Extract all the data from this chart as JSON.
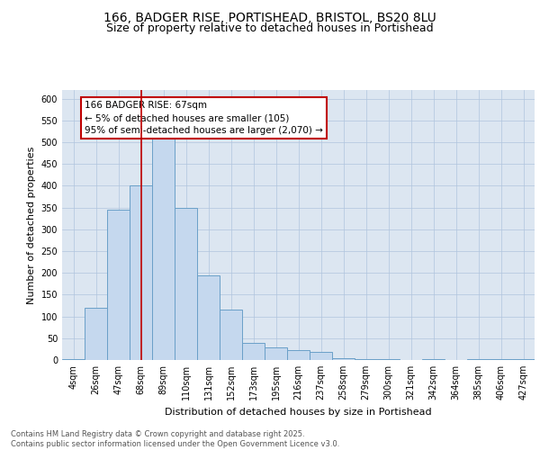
{
  "title_line1": "166, BADGER RISE, PORTISHEAD, BRISTOL, BS20 8LU",
  "title_line2": "Size of property relative to detached houses in Portishead",
  "xlabel": "Distribution of detached houses by size in Portishead",
  "ylabel": "Number of detached properties",
  "categories": [
    "4sqm",
    "26sqm",
    "47sqm",
    "68sqm",
    "89sqm",
    "110sqm",
    "131sqm",
    "152sqm",
    "173sqm",
    "195sqm",
    "216sqm",
    "237sqm",
    "258sqm",
    "279sqm",
    "300sqm",
    "321sqm",
    "342sqm",
    "364sqm",
    "385sqm",
    "406sqm",
    "427sqm"
  ],
  "values": [
    2,
    120,
    345,
    400,
    510,
    350,
    195,
    115,
    40,
    28,
    22,
    18,
    5,
    3,
    3,
    1,
    2,
    1,
    2,
    2,
    2
  ],
  "bar_color": "#c5d8ee",
  "bar_edge_color": "#6aa0c8",
  "vline_color": "#c00000",
  "vline_x": 3.0,
  "annotation_text": "166 BADGER RISE: 67sqm\n← 5% of detached houses are smaller (105)\n95% of semi-detached houses are larger (2,070) →",
  "annotation_box_color": "#ffffff",
  "annotation_box_edge_color": "#c00000",
  "ylim": [
    0,
    620
  ],
  "yticks": [
    0,
    50,
    100,
    150,
    200,
    250,
    300,
    350,
    400,
    450,
    500,
    550,
    600
  ],
  "background_color": "#dce6f1",
  "footer_text": "Contains HM Land Registry data © Crown copyright and database right 2025.\nContains public sector information licensed under the Open Government Licence v3.0.",
  "title_fontsize": 10,
  "subtitle_fontsize": 9,
  "axis_label_fontsize": 8,
  "tick_fontsize": 7,
  "annotation_fontsize": 7.5,
  "footer_fontsize": 6
}
